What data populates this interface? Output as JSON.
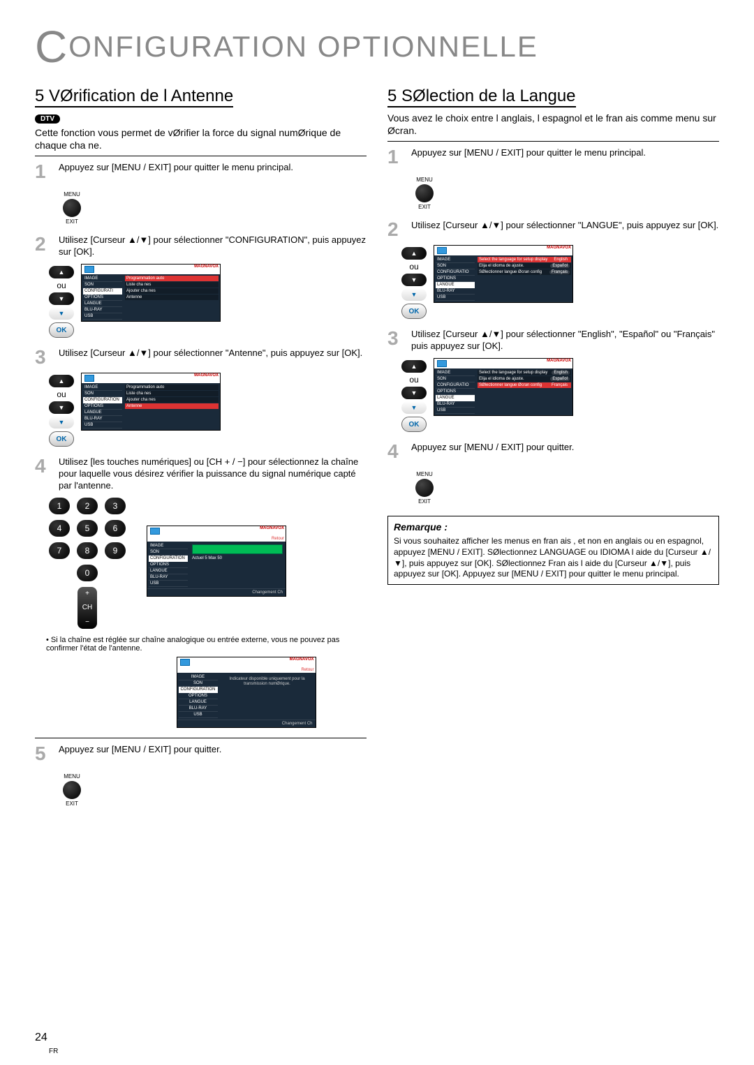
{
  "page": {
    "main_title_c": "C",
    "main_title_rest": "ONFIGURATION OPTIONNELLE",
    "page_number": "24",
    "page_lang": "FR"
  },
  "left": {
    "title": "5 VØrification de l Antenne",
    "badge": "DTV",
    "intro": "Cette fonction vous permet de vØrifier la force du signal numØrique de chaque cha ne.",
    "steps": {
      "1": {
        "num": "1",
        "text": "Appuyez sur [MENU / EXIT] pour quitter le menu principal."
      },
      "2": {
        "num": "2",
        "text": "Utilisez [Curseur ▲/▼] pour sélectionner \"CONFIGURATION\", puis appuyez sur [OK]."
      },
      "3": {
        "num": "3",
        "text": "Utilisez [Curseur ▲/▼] pour sélectionner \"Antenne\", puis appuyez sur [OK]."
      },
      "4": {
        "num": "4",
        "text": "Utilisez [les touches numériques] ou [CH + / −] pour sélectionnez la chaîne pour laquelle vous désirez vérifier la puissance du signal numérique capté par l'antenne."
      },
      "5": {
        "num": "5",
        "text": "Appuyez sur [MENU / EXIT] pour quitter."
      }
    },
    "asterisk": "Si la chaîne est réglée sur chaîne analogique ou entrée externe, vous ne pouvez pas confirmer l'état de l'antenne.",
    "menu_btn": {
      "top": "MENU",
      "bottom": "EXIT"
    },
    "ok_label": "OK",
    "ou": "ou",
    "arrow_up": "▲",
    "arrow_down": "▼",
    "keypad": [
      "1",
      "2",
      "3",
      "4",
      "5",
      "6",
      "7",
      "8",
      "9",
      "0"
    ],
    "ch": {
      "plus": "+",
      "label": "CH",
      "minus": "−"
    },
    "menuA": {
      "brand": "MAGNAVOX",
      "side": [
        "IMAGE",
        "SON",
        "CONFIGURATI",
        "OPTIONS",
        "LANGUE",
        "BLU-RAY",
        "USB"
      ],
      "active_idx": 2,
      "rows": [
        "Programmation auto",
        "Liste cha nes",
        "Ajouter cha nes",
        "Antenne"
      ],
      "sel_idx": 0
    },
    "menuB": {
      "brand": "MAGNAVOX",
      "side": [
        "IMAGE",
        "SON",
        "CONFIGURATION",
        "OPTIONS",
        "LANGUE",
        "BLU-RAY",
        "USB"
      ],
      "active_idx": 2,
      "rows": [
        "Programmation auto",
        "Liste cha nes",
        "Ajouter cha nes",
        "Antenne"
      ],
      "sel_idx": 3
    },
    "menuC": {
      "brand": "MAGNAVOX",
      "side": [
        "IMAGE",
        "SON",
        "CONFIGURATION",
        "OPTIONS",
        "LANGUE",
        "BLU-RAY",
        "USB"
      ],
      "active_idx": 2,
      "retour": "Retour",
      "signal_label": "Actuel   5 Max     50",
      "footer": "Changement Ch"
    },
    "menuD": {
      "brand": "MAGNAVOX",
      "side": [
        "IMAGE",
        "SON",
        "CONFIGURATION",
        "OPTIONS",
        "LANGUE",
        "BLU-RAY",
        "USB"
      ],
      "active_idx": 2,
      "retour": "Retour",
      "msg": "Indicateur disponible uniquement pour la transmission numØrique.",
      "footer": "Changement Ch"
    }
  },
  "right": {
    "title": "5 SØlection de la Langue",
    "intro": "Vous avez le choix entre l anglais, l espagnol et le fran ais comme menu sur Øcran.",
    "steps": {
      "1": {
        "num": "1",
        "text": "Appuyez sur [MENU / EXIT] pour quitter le menu principal."
      },
      "2": {
        "num": "2",
        "text": "Utilisez [Curseur ▲/▼] pour sélectionner \"LANGUE\", puis appuyez sur [OK]."
      },
      "3": {
        "num": "3",
        "text": "Utilisez [Curseur ▲/▼] pour sélectionner \"English\", \"Español\" ou \"Français\" puis appuyez sur [OK]."
      },
      "4": {
        "num": "4",
        "text": "Appuyez sur [MENU / EXIT] pour quitter."
      }
    },
    "note": {
      "title": "Remarque :",
      "text": "Si vous souhaitez afficher les menus en fran ais , et non en anglais ou en espagnol, appuyez [MENU / EXIT]. SØlectionnez  LANGUAGE  ou  IDIOMA  l aide du [Curseur ▲/▼], puis appuyez sur [OK]. SØlectionnez  Fran ais  l aide du [Curseur ▲/▼], puis appuyez sur [OK]. Appuyez sur [MENU / EXIT] pour quitter le menu principal."
    },
    "menuA": {
      "brand": "MAGNAVOX",
      "side": [
        "IMAGE",
        "SON",
        "CONFIGURATIO",
        "OPTIONS",
        "LANGUE",
        "BLU-RAY",
        "USB"
      ],
      "active_idx": 4,
      "rows": [
        {
          "label": "Select the language for setup display",
          "opt": "English",
          "hot": true
        },
        {
          "label": "Elija el idioma de ajuste.",
          "opt": "Español",
          "hot": false
        },
        {
          "label": "SØlectionner langue Øcran config",
          "opt": "Français",
          "hot": false
        }
      ]
    },
    "menuB": {
      "brand": "MAGNAVOX",
      "side": [
        "IMAGE",
        "SON",
        "CONFIGURATIO",
        "OPTIONS",
        "LANGUE",
        "BLU-RAY",
        "USB"
      ],
      "active_idx": 4,
      "rows": [
        {
          "label": "Select the language for setup display",
          "opt": "English",
          "hot": false
        },
        {
          "label": "Elija el idioma de ajuste.",
          "opt": "Español",
          "hot": false
        },
        {
          "label": "SØlectionner langue Øcran config",
          "opt": "Français",
          "hot": true
        }
      ]
    }
  },
  "colors": {
    "accent_red": "#d33333",
    "screen_bg": "#1a2a3a",
    "gray_title": "#888888"
  }
}
